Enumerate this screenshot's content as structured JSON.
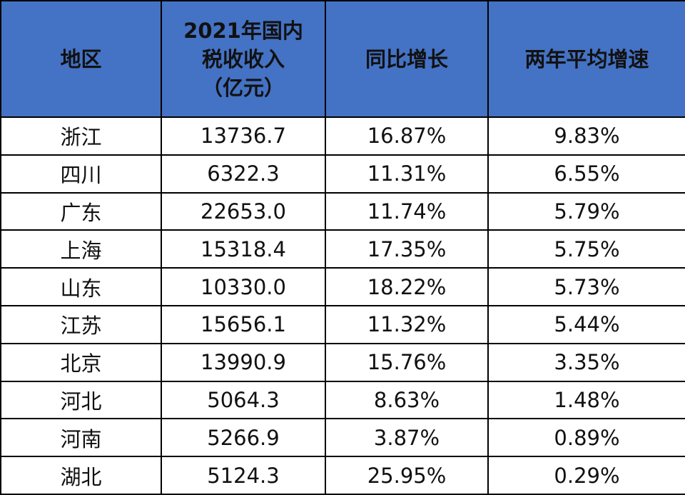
{
  "table": {
    "headers": [
      [
        "地区"
      ],
      [
        "2021年国内",
        "税收收入",
        "（亿元）"
      ],
      [
        "同比增长"
      ],
      [
        "两年平均增速"
      ]
    ],
    "rows": [
      [
        "浙江",
        "13736.7",
        "16.87%",
        {
          "value": 9.83,
          "label": "9.83%"
        }
      ],
      [
        "四川",
        "6322.3",
        "11.31%",
        {
          "value": 6.55,
          "label": "6.55%"
        }
      ],
      [
        "广东",
        "22653.0",
        "11.74%",
        {
          "value": 5.79,
          "label": "5.79%"
        }
      ],
      [
        "上海",
        "15318.4",
        "17.35%",
        {
          "value": 5.75,
          "label": "5.75%"
        }
      ],
      [
        "山东",
        "10330.0",
        "18.22%",
        {
          "value": 5.73,
          "label": "5.73%"
        }
      ],
      [
        "江苏",
        "15656.1",
        "11.32%",
        {
          "value": 5.44,
          "label": "5.44%"
        }
      ],
      [
        "北京",
        "13990.9",
        "15.76%",
        {
          "value": 3.35,
          "label": "3.35%"
        }
      ],
      [
        "河北",
        "5064.3",
        "8.63%",
        {
          "value": 1.48,
          "label": "1.48%"
        }
      ],
      [
        "河南",
        "5266.9",
        "3.87%",
        {
          "value": 0.89,
          "label": "0.89%"
        }
      ],
      [
        "湖北",
        "5124.3",
        "25.95%",
        {
          "value": 0.29,
          "label": "0.29%"
        }
      ]
    ]
  }
}
